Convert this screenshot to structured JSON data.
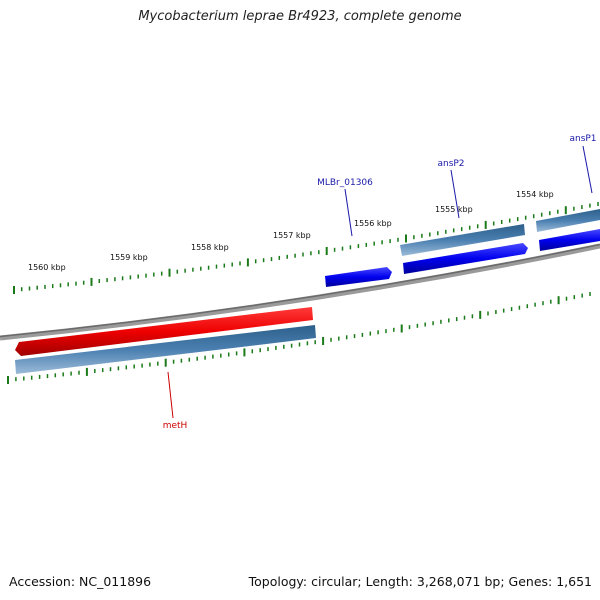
{
  "title": "Mycobacterium leprae Br4923, complete genome",
  "footer": {
    "accession": "Accession: NC_011896",
    "summary": "Topology: circular; Length: 3,268,071 bp; Genes: 1,651"
  },
  "scale_labels": [
    "1560 kbp",
    "1559 kbp",
    "1558 kbp",
    "1557 kbp",
    "1556 kbp",
    "1555 kbp",
    "1554 kbp"
  ],
  "genes": [
    {
      "name": "MLBr_01306",
      "strand": "forward"
    },
    {
      "name": "ansP2",
      "strand": "forward"
    },
    {
      "name": "ansP1",
      "strand": "forward"
    },
    {
      "name": "metH",
      "strand": "reverse"
    }
  ],
  "colors": {
    "forward_gene": "#0000ee",
    "reverse_gene": "#ee0000",
    "cds_bar": "#4a7fb0",
    "backbone": "#808080",
    "tick": "#1a7a1a",
    "forward_label": "#1a1aaa",
    "reverse_label": "#cc0000"
  }
}
